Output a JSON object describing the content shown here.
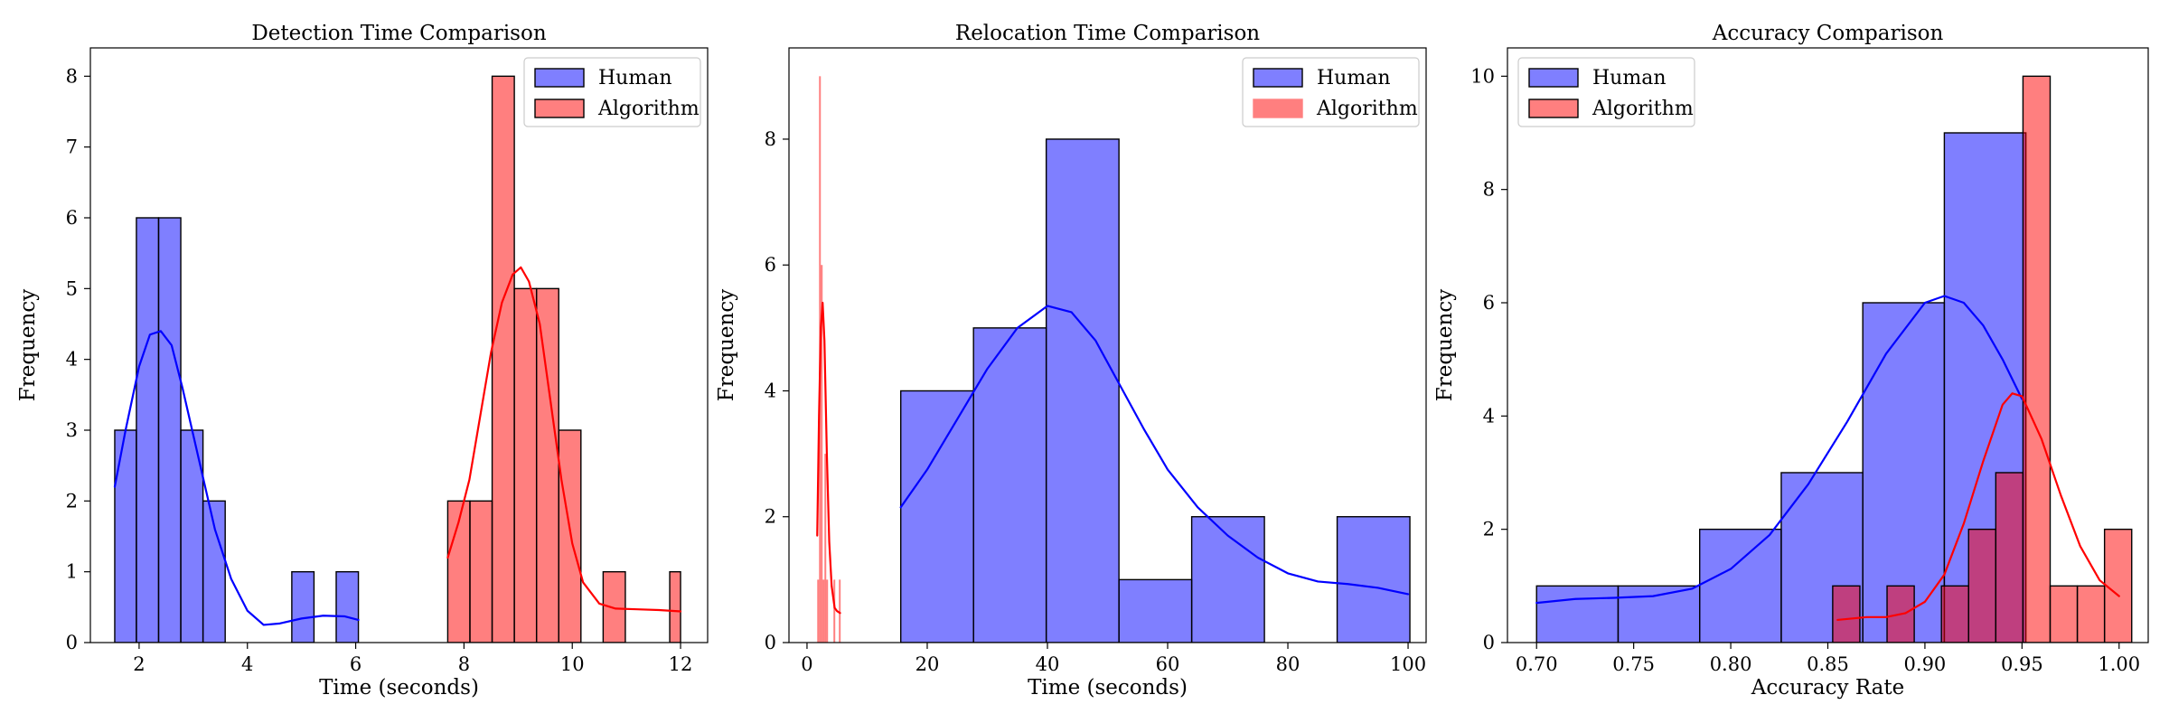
{
  "chart_data": [
    {
      "type": "histogram",
      "title": "Detection Time Comparison",
      "xlabel": "Time (seconds)",
      "ylabel": "Frequency",
      "xlim": [
        1.1,
        12.5
      ],
      "ylim": [
        0,
        8.4
      ],
      "xticks": [
        2,
        4,
        6,
        8,
        10,
        12
      ],
      "yticks": [
        0,
        1,
        2,
        3,
        4,
        5,
        6,
        7,
        8
      ],
      "legend_position": "top-right",
      "series": [
        {
          "name": "Human",
          "color": "#0000ff",
          "bins": [
            [
              1.55,
              1.95,
              3
            ],
            [
              1.95,
              2.36,
              6
            ],
            [
              2.36,
              2.77,
              6
            ],
            [
              2.77,
              3.18,
              3
            ],
            [
              3.18,
              3.59,
              2
            ],
            [
              4.82,
              5.23,
              1
            ],
            [
              5.64,
              6.05,
              1
            ]
          ],
          "kde": [
            [
              1.55,
              2.2
            ],
            [
              1.75,
              3.0
            ],
            [
              2.0,
              3.9
            ],
            [
              2.2,
              4.35
            ],
            [
              2.4,
              4.4
            ],
            [
              2.6,
              4.2
            ],
            [
              2.8,
              3.6
            ],
            [
              3.1,
              2.6
            ],
            [
              3.4,
              1.6
            ],
            [
              3.7,
              0.9
            ],
            [
              4.0,
              0.45
            ],
            [
              4.3,
              0.25
            ],
            [
              4.6,
              0.27
            ],
            [
              5.0,
              0.34
            ],
            [
              5.4,
              0.38
            ],
            [
              5.8,
              0.37
            ],
            [
              6.05,
              0.32
            ]
          ]
        },
        {
          "name": "Algorithm",
          "color": "#ff0000",
          "legend_edge": "#000000",
          "bins": [
            [
              7.7,
              8.11,
              2
            ],
            [
              8.11,
              8.52,
              2
            ],
            [
              8.52,
              8.93,
              8
            ],
            [
              8.93,
              9.34,
              5
            ],
            [
              9.34,
              9.75,
              5
            ],
            [
              9.75,
              10.16,
              3
            ],
            [
              10.57,
              10.98,
              1
            ],
            [
              11.8,
              12.0,
              1
            ]
          ],
          "kde": [
            [
              7.7,
              1.2
            ],
            [
              7.9,
              1.7
            ],
            [
              8.1,
              2.3
            ],
            [
              8.3,
              3.2
            ],
            [
              8.5,
              4.1
            ],
            [
              8.7,
              4.8
            ],
            [
              8.9,
              5.2
            ],
            [
              9.05,
              5.3
            ],
            [
              9.2,
              5.1
            ],
            [
              9.4,
              4.5
            ],
            [
              9.6,
              3.4
            ],
            [
              9.8,
              2.3
            ],
            [
              10.0,
              1.4
            ],
            [
              10.2,
              0.85
            ],
            [
              10.5,
              0.55
            ],
            [
              10.8,
              0.48
            ],
            [
              11.2,
              0.47
            ],
            [
              11.6,
              0.46
            ],
            [
              12.0,
              0.44
            ]
          ]
        }
      ]
    },
    {
      "type": "histogram",
      "title": "Relocation Time Comparison",
      "xlabel": "Time (seconds)",
      "ylabel": "Frequency",
      "xlim": [
        -3,
        103
      ],
      "ylim": [
        0,
        9.45
      ],
      "xticks": [
        0,
        20,
        40,
        60,
        80,
        100
      ],
      "yticks": [
        0,
        2,
        4,
        6,
        8
      ],
      "legend_position": "top-right",
      "series": [
        {
          "name": "Human",
          "color": "#0000ff",
          "bins": [
            [
              15.6,
              27.7,
              4
            ],
            [
              27.7,
              39.8,
              5
            ],
            [
              39.8,
              51.9,
              8
            ],
            [
              51.9,
              64.0,
              1
            ],
            [
              64.0,
              76.1,
              2
            ],
            [
              88.2,
              100.3,
              2
            ]
          ],
          "kde": [
            [
              15.6,
              2.15
            ],
            [
              20,
              2.75
            ],
            [
              25,
              3.55
            ],
            [
              30,
              4.35
            ],
            [
              35,
              5.0
            ],
            [
              40,
              5.35
            ],
            [
              44,
              5.25
            ],
            [
              48,
              4.8
            ],
            [
              52,
              4.1
            ],
            [
              56,
              3.4
            ],
            [
              60,
              2.75
            ],
            [
              65,
              2.15
            ],
            [
              70,
              1.7
            ],
            [
              75,
              1.35
            ],
            [
              80,
              1.1
            ],
            [
              85,
              0.97
            ],
            [
              90,
              0.93
            ],
            [
              95,
              0.87
            ],
            [
              100,
              0.77
            ]
          ]
        },
        {
          "name": "Algorithm",
          "color": "#ff0000",
          "legend_edge": "#ff8080",
          "bins": [
            [
              1.7,
              2.0,
              1
            ],
            [
              2.0,
              2.3,
              9
            ],
            [
              2.3,
              2.6,
              6
            ],
            [
              2.6,
              2.9,
              1
            ],
            [
              2.9,
              3.2,
              3
            ],
            [
              3.2,
              3.5,
              1
            ],
            [
              4.4,
              4.7,
              1
            ],
            [
              5.3,
              5.6,
              1
            ]
          ],
          "kde": [
            [
              1.7,
              1.7
            ],
            [
              2.0,
              3.6
            ],
            [
              2.3,
              5.0
            ],
            [
              2.6,
              5.4
            ],
            [
              2.9,
              4.8
            ],
            [
              3.3,
              3.0
            ],
            [
              3.7,
              1.6
            ],
            [
              4.1,
              0.9
            ],
            [
              4.6,
              0.55
            ],
            [
              5.0,
              0.5
            ],
            [
              5.5,
              0.47
            ]
          ]
        }
      ]
    },
    {
      "type": "histogram",
      "title": "Accuracy Comparison",
      "xlabel": "Accuracy Rate",
      "ylabel": "Frequency",
      "xlim": [
        0.685,
        1.015
      ],
      "ylim": [
        0,
        10.5
      ],
      "xticks": [
        0.7,
        0.75,
        0.8,
        0.85,
        0.9,
        0.95,
        1.0
      ],
      "xtick_labels": [
        "0.70",
        "0.75",
        "0.80",
        "0.85",
        "0.90",
        "0.95",
        "1.00"
      ],
      "yticks": [
        0,
        2,
        4,
        6,
        8,
        10
      ],
      "legend_position": "top-left",
      "series": [
        {
          "name": "Human",
          "color": "#0000ff",
          "bins": [
            [
              0.7,
              0.742,
              1
            ],
            [
              0.742,
              0.784,
              1
            ],
            [
              0.784,
              0.826,
              2
            ],
            [
              0.826,
              0.868,
              3
            ],
            [
              0.868,
              0.91,
              6
            ],
            [
              0.91,
              0.952,
              9
            ]
          ],
          "kde": [
            [
              0.7,
              0.7
            ],
            [
              0.72,
              0.77
            ],
            [
              0.74,
              0.79
            ],
            [
              0.76,
              0.82
            ],
            [
              0.78,
              0.95
            ],
            [
              0.8,
              1.3
            ],
            [
              0.82,
              1.9
            ],
            [
              0.84,
              2.8
            ],
            [
              0.86,
              3.9
            ],
            [
              0.88,
              5.1
            ],
            [
              0.9,
              6.0
            ],
            [
              0.91,
              6.12
            ],
            [
              0.92,
              6.0
            ],
            [
              0.93,
              5.6
            ],
            [
              0.94,
              5.0
            ],
            [
              0.95,
              4.3
            ]
          ]
        },
        {
          "name": "Algorithm",
          "color": "#ff0000",
          "legend_edge": "#000000",
          "bins": [
            [
              0.8525,
              0.8665,
              1
            ],
            [
              0.8805,
              0.8945,
              1
            ],
            [
              0.9085,
              0.9225,
              1
            ],
            [
              0.9225,
              0.9365,
              2
            ],
            [
              0.9365,
              0.9505,
              3
            ],
            [
              0.9505,
              0.9645,
              10
            ],
            [
              0.9645,
              0.9785,
              1
            ],
            [
              0.9785,
              0.9925,
              1
            ],
            [
              0.9925,
              1.0065,
              2
            ]
          ],
          "kde": [
            [
              0.855,
              0.4
            ],
            [
              0.87,
              0.45
            ],
            [
              0.88,
              0.45
            ],
            [
              0.89,
              0.52
            ],
            [
              0.9,
              0.72
            ],
            [
              0.91,
              1.2
            ],
            [
              0.92,
              2.1
            ],
            [
              0.93,
              3.2
            ],
            [
              0.94,
              4.2
            ],
            [
              0.945,
              4.4
            ],
            [
              0.95,
              4.35
            ],
            [
              0.96,
              3.6
            ],
            [
              0.97,
              2.6
            ],
            [
              0.98,
              1.7
            ],
            [
              0.99,
              1.1
            ],
            [
              1.0,
              0.82
            ]
          ]
        }
      ]
    }
  ]
}
